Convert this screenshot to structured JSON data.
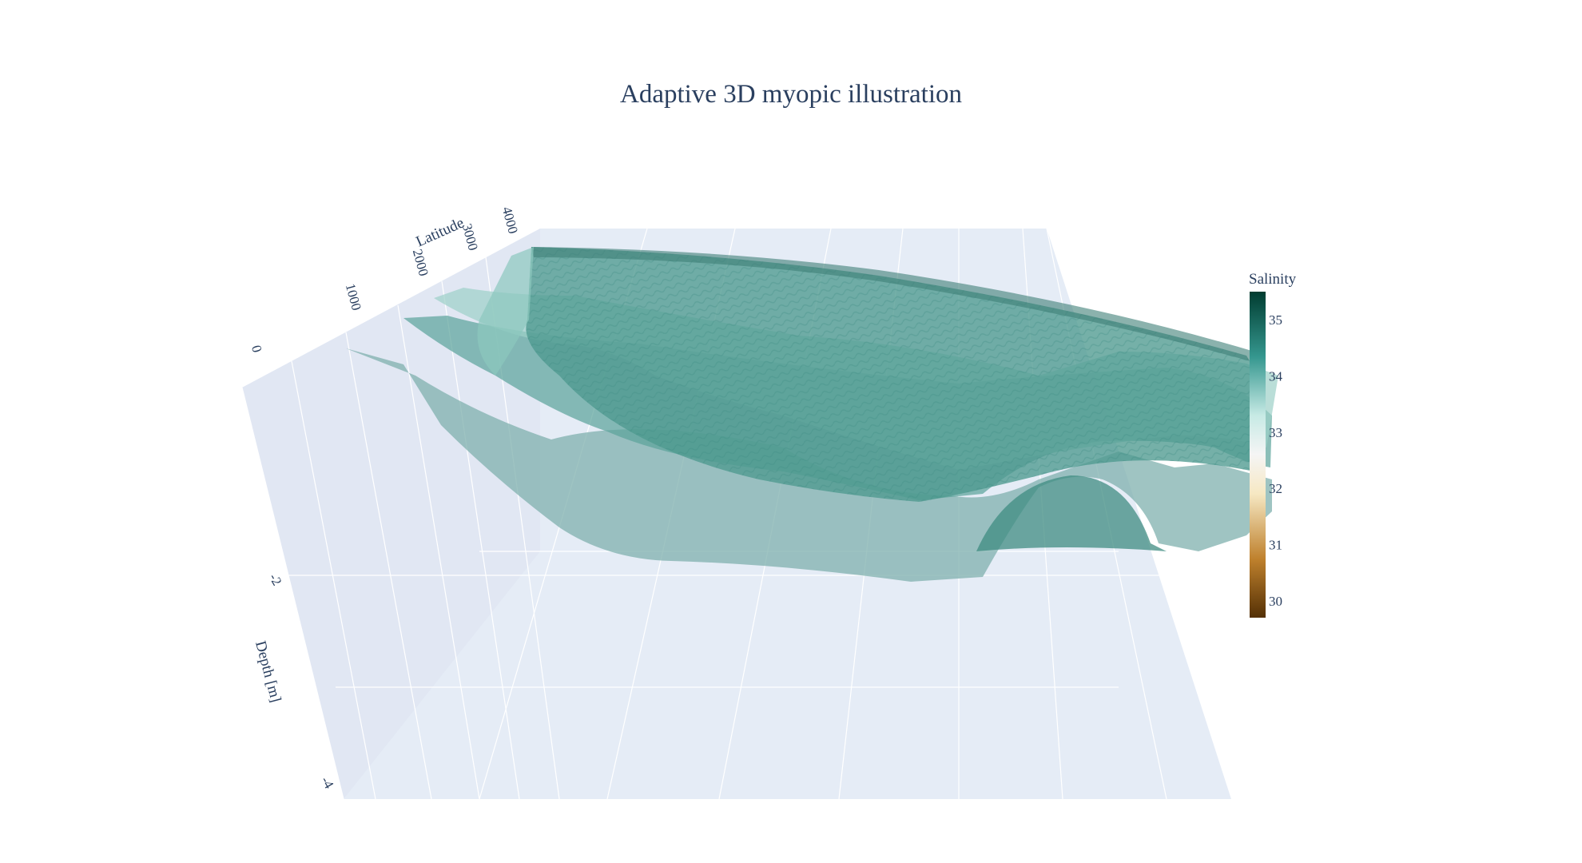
{
  "chart_data": {
    "type": "surface",
    "title": "Adaptive 3D myopic illustration",
    "axes": {
      "y": {
        "title": "Latitude",
        "ticks": [
          "0",
          "1000",
          "2000",
          "3000",
          "4000"
        ]
      },
      "z": {
        "title": "Depth [m]",
        "ticks": [
          "-2",
          "-4"
        ]
      }
    },
    "colorbar": {
      "title": "Salinity",
      "ticks": [
        "35",
        "34",
        "33",
        "32",
        "31",
        "30"
      ],
      "range": [
        29.7,
        35.5
      ],
      "colorscale": [
        [
          0.0,
          "#543005"
        ],
        [
          0.18,
          "#bf812d"
        ],
        [
          0.38,
          "#f6e8c3"
        ],
        [
          0.5,
          "#f5f5f5"
        ],
        [
          0.62,
          "#c7eae5"
        ],
        [
          0.8,
          "#35978f"
        ],
        [
          1.0,
          "#003c30"
        ]
      ]
    },
    "surfaces": [
      {
        "name": "",
        "salinity": 33.2
      },
      {
        "name": "",
        "salinity": 33.9
      },
      {
        "name": "",
        "salinity": 34.3
      }
    ],
    "grid": true
  },
  "colors": {
    "scene_bg": "#e5ecf6",
    "grid": "#ffffff",
    "text": "#2a3f5f"
  }
}
